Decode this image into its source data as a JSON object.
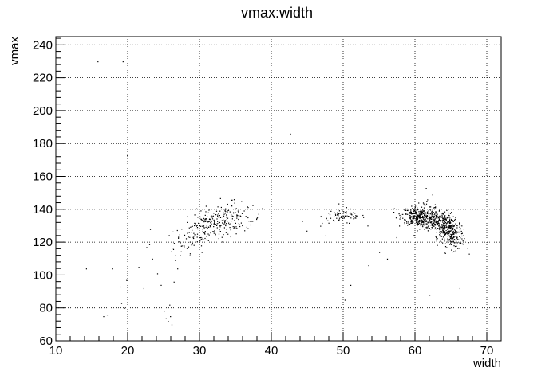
{
  "chart_data": {
    "type": "scatter",
    "title": "vmax:width",
    "xlabel": "width",
    "ylabel": "vmax",
    "xlim": [
      10,
      72
    ],
    "ylim": [
      60,
      245
    ],
    "grid": true,
    "x_ticks": [
      10,
      20,
      30,
      40,
      50,
      60,
      70
    ],
    "y_ticks": [
      60,
      80,
      100,
      120,
      140,
      160,
      180,
      200,
      220,
      240
    ],
    "x_minor_step": 2,
    "y_minor_step": 4,
    "marker_color": "#000000",
    "points": [
      [
        15.8,
        230
      ],
      [
        19.3,
        230
      ],
      [
        19.9,
        173
      ],
      [
        42.6,
        186
      ],
      [
        14.2,
        104
      ],
      [
        17.8,
        104
      ],
      [
        16.6,
        75
      ],
      [
        17.1,
        76
      ],
      [
        18.9,
        93
      ],
      [
        19.1,
        83
      ],
      [
        19.5,
        80
      ],
      [
        19.8,
        97
      ],
      [
        21.5,
        105
      ],
      [
        22.2,
        92
      ],
      [
        22.6,
        117
      ],
      [
        23.1,
        128
      ],
      [
        23.4,
        110
      ],
      [
        24.1,
        101
      ],
      [
        24.6,
        94
      ],
      [
        25.0,
        78
      ],
      [
        25.3,
        74
      ],
      [
        25.6,
        72
      ],
      [
        25.9,
        75
      ],
      [
        26.1,
        70
      ],
      [
        25.8,
        82
      ],
      [
        26.4,
        96
      ],
      [
        26.9,
        104
      ],
      [
        27.3,
        112
      ],
      [
        27.8,
        118
      ],
      [
        26.6,
        109
      ],
      [
        53.5,
        106
      ],
      [
        55.0,
        114
      ],
      [
        56.1,
        110
      ],
      [
        57.4,
        123
      ],
      [
        50.2,
        85
      ],
      [
        51.0,
        94
      ],
      [
        62.0,
        88
      ],
      [
        64.8,
        80
      ],
      [
        66.2,
        92
      ],
      [
        67.5,
        113
      ],
      [
        61.5,
        153
      ],
      [
        62.4,
        149
      ],
      [
        44.3,
        133
      ],
      [
        46.8,
        130
      ],
      [
        48.1,
        137
      ],
      [
        44.9,
        127
      ],
      [
        47.5,
        124
      ]
    ],
    "clusters": [
      {
        "cx": 31.0,
        "cy": 130,
        "sx": 2.3,
        "sy": 5.5,
        "n": 230,
        "slope": 2.2
      },
      {
        "cx": 35.0,
        "cy": 133,
        "sx": 1.8,
        "sy": 3.5,
        "n": 70,
        "slope": 0.4
      },
      {
        "cx": 50.0,
        "cy": 136,
        "sx": 1.5,
        "sy": 2.3,
        "n": 75,
        "slope": 0.0
      },
      {
        "cx": 60.5,
        "cy": 135,
        "sx": 1.2,
        "sy": 2.8,
        "n": 330,
        "slope": -0.8
      },
      {
        "cx": 63.6,
        "cy": 131,
        "sx": 1.2,
        "sy": 4.5,
        "n": 330,
        "slope": -2.6
      },
      {
        "cx": 65.2,
        "cy": 126,
        "sx": 0.8,
        "sy": 5.0,
        "n": 140,
        "slope": -2.0
      }
    ]
  }
}
